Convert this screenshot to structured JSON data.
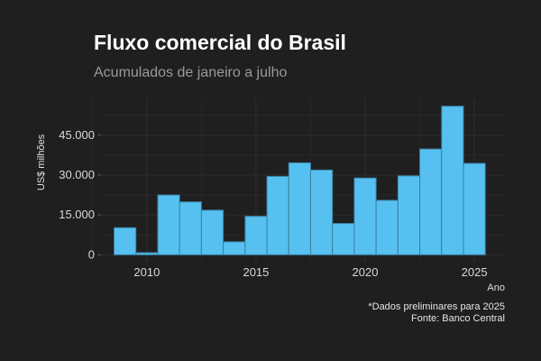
{
  "chart_data": {
    "type": "bar",
    "title": "Fluxo comercial do Brasil",
    "subtitle": "Acumulados de janeiro a julho",
    "xlabel": "Ano",
    "ylabel": "US$ milhões",
    "x": [
      2009,
      2010,
      2011,
      2012,
      2013,
      2014,
      2015,
      2016,
      2017,
      2018,
      2019,
      2020,
      2021,
      2022,
      2023,
      2024,
      2025
    ],
    "values": [
      10200,
      800,
      22500,
      19900,
      16800,
      4900,
      14500,
      29500,
      34600,
      31900,
      11800,
      28900,
      20500,
      29700,
      39800,
      55900,
      34400
    ],
    "xticks": [
      2010,
      2015,
      2020,
      2025
    ],
    "xtick_labels": [
      "2010",
      "2015",
      "2020",
      "2025"
    ],
    "yticks": [
      0,
      15000,
      30000,
      45000
    ],
    "ytick_labels": [
      "0",
      "15.000",
      "30.000",
      "45.000"
    ],
    "xlim": [
      2007.9,
      2026.4
    ],
    "ylim": [
      -2600,
      58500
    ],
    "grid": true,
    "notes": [
      "*Dados preliminares para 2025",
      "Fonte: Banco Central"
    ],
    "colors": {
      "bar": "#56c1f0",
      "bar_border": "#3a7fa0",
      "grid": "#2e2e2e",
      "background": "#1f1f1f"
    }
  }
}
